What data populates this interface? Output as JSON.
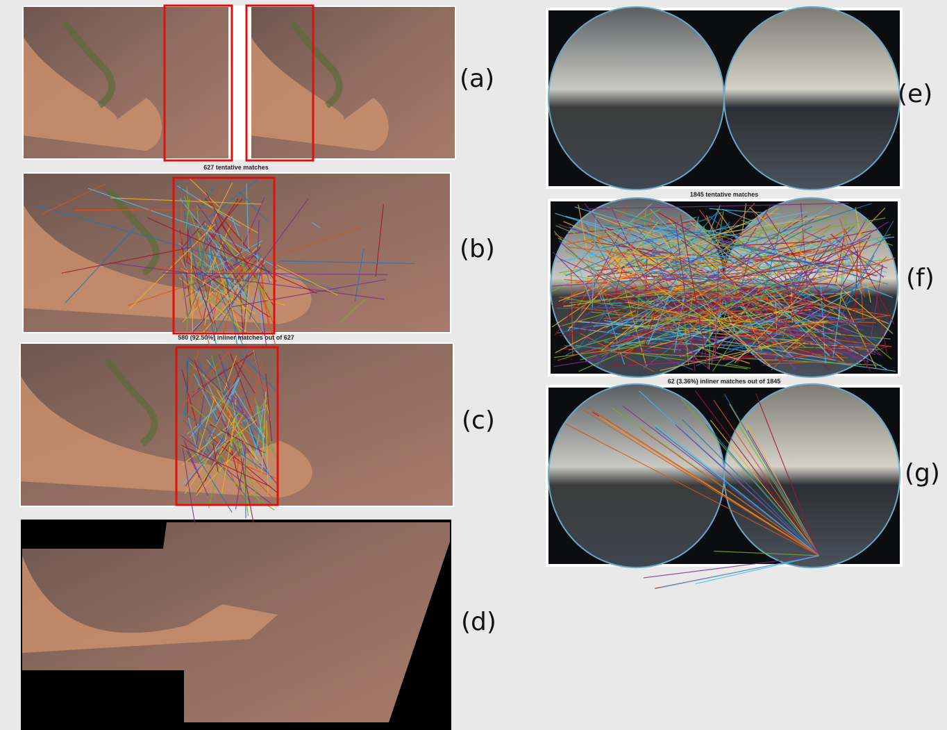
{
  "panels": {
    "a": {
      "label": "(a)"
    },
    "b": {
      "label": "(b)",
      "caption": "627 tentative matches"
    },
    "c": {
      "label": "(c)",
      "caption": "580 (92.50%) inliner matches out of 627"
    },
    "d": {
      "label": "(d)"
    },
    "e": {
      "label": "(e)"
    },
    "f": {
      "label": "(f)",
      "caption": "1845 tentative matches"
    },
    "g": {
      "label": "(g)",
      "caption": "62 (3.36%) inliner matches out of 1845"
    }
  }
}
